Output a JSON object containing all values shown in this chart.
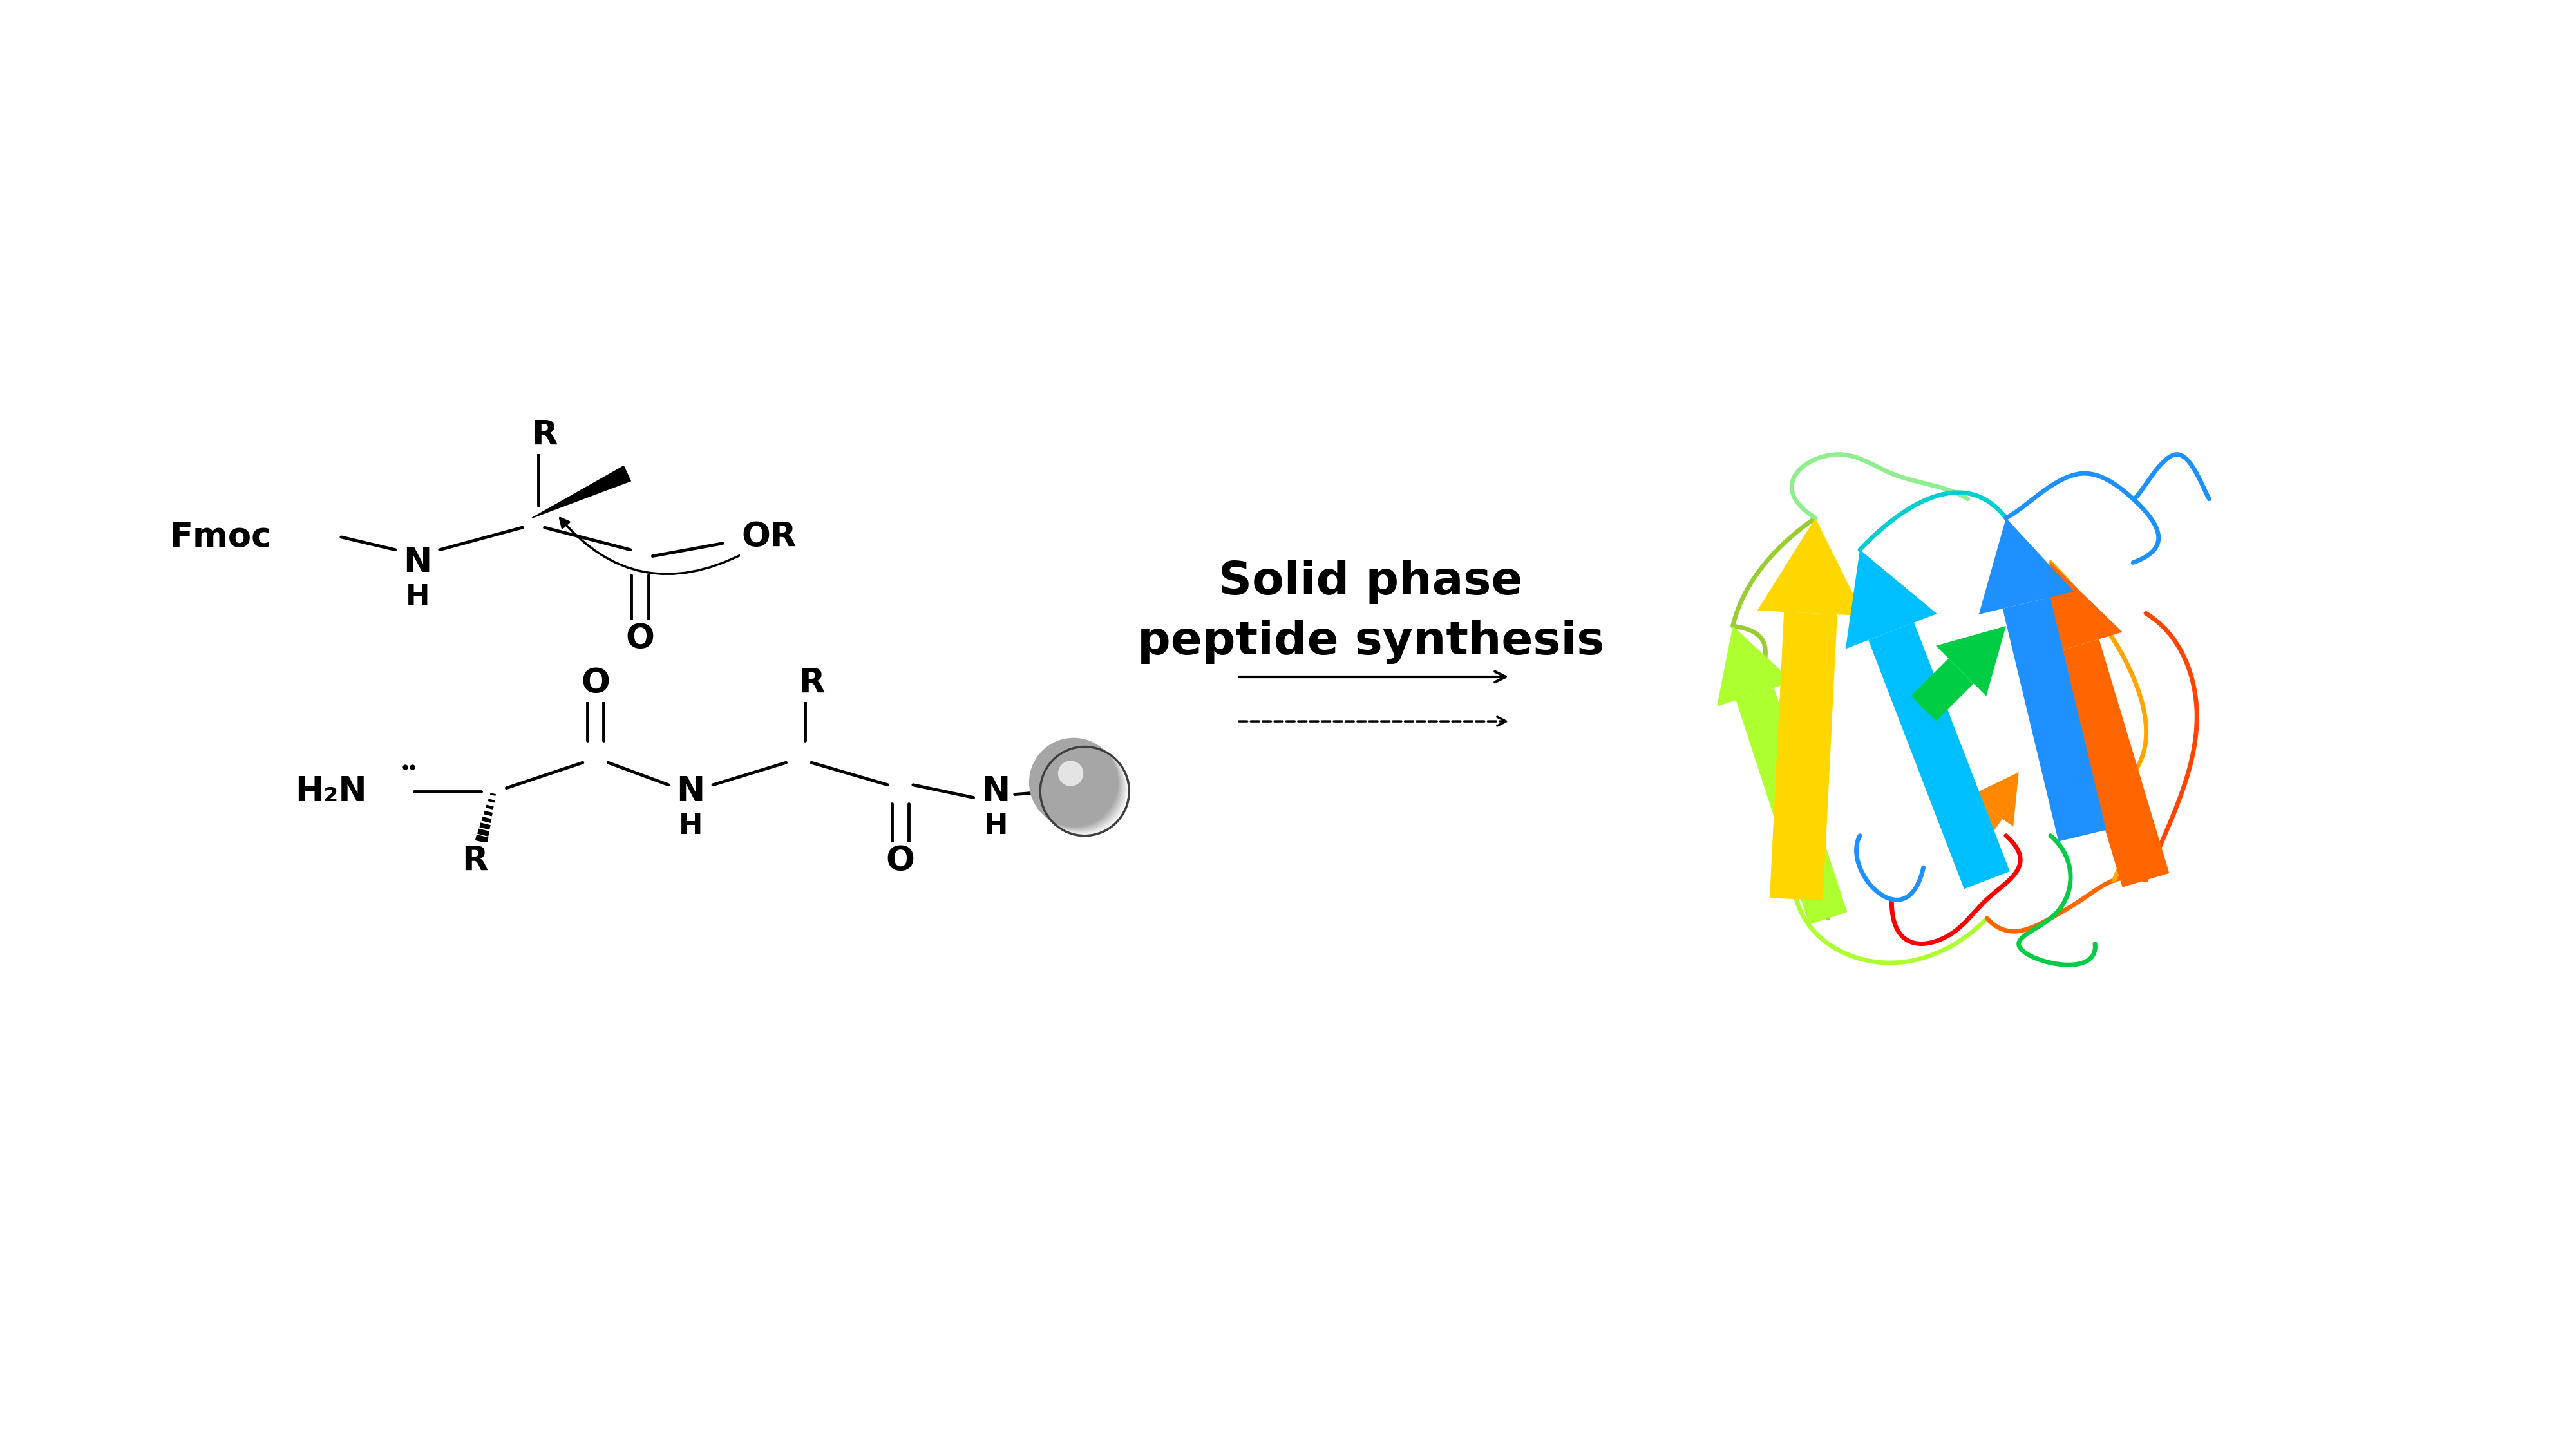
{
  "title": "Solid phase peptide synthesis",
  "title_line1": "Solid phase",
  "title_line2": "peptide synthesis",
  "background_color": "#ffffff",
  "text_color": "#000000",
  "title_fontsize": 52,
  "chem_fontsize": 38,
  "label_fontsize": 32,
  "arrow_color": "#000000",
  "dashed_color": "#000000",
  "sphere_color_center": "#e0e0e0",
  "sphere_color_edge": "#808080"
}
